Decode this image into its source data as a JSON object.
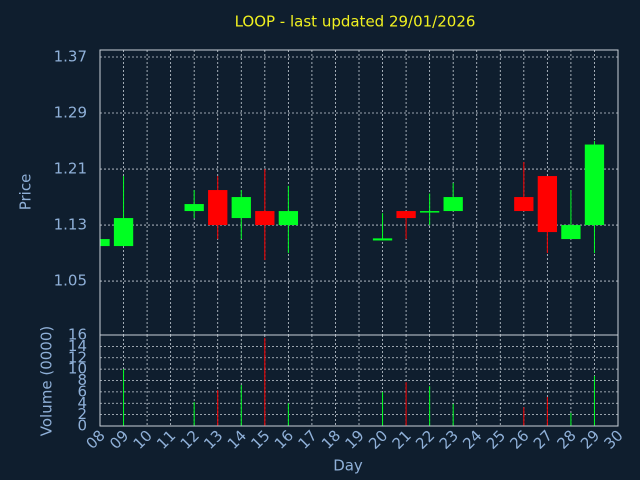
{
  "chart_data": {
    "type": "candlestick",
    "title": "LOOP - last updated 29/01/2026",
    "ylabel": "Price",
    "volume_label": "Volume (0000)",
    "xlabel": "Day",
    "x": [
      8,
      9,
      12,
      13,
      14,
      15,
      16,
      20,
      21,
      22,
      23,
      26,
      27,
      28,
      29
    ],
    "open": [
      1.1,
      1.1,
      1.15,
      1.18,
      1.14,
      1.15,
      1.13,
      1.108,
      1.15,
      1.148,
      1.15,
      1.17,
      1.2,
      1.11,
      1.13
    ],
    "high": [
      1.11,
      1.2,
      1.18,
      1.2,
      1.18,
      1.21,
      1.186,
      1.147,
      1.15,
      1.175,
      1.19,
      1.22,
      1.2,
      1.18,
      1.25
    ],
    "low": [
      1.1,
      1.1,
      1.14,
      1.11,
      1.11,
      1.08,
      1.09,
      1.108,
      1.11,
      1.13,
      1.15,
      1.15,
      1.09,
      1.11,
      1.09
    ],
    "close": [
      1.11,
      1.14,
      1.16,
      1.13,
      1.17,
      1.13,
      1.15,
      1.111,
      1.14,
      1.15,
      1.17,
      1.15,
      1.12,
      1.13,
      1.245
    ],
    "volume": [
      0,
      10,
      4.2,
      6.3,
      7.2,
      15.5,
      4,
      6,
      7.7,
      7,
      3.9,
      3.3,
      5.1,
      2.3,
      8.8
    ],
    "up_color": "#00ff22",
    "down_color": "#ff0000",
    "xlim": [
      8,
      30
    ],
    "xticks": [
      {
        "value": 8,
        "label": "08"
      },
      {
        "value": 9,
        "label": "09"
      },
      10,
      11,
      12,
      13,
      14,
      15,
      16,
      17,
      18,
      19,
      20,
      21,
      22,
      23,
      24,
      25,
      26,
      27,
      28,
      29,
      30
    ],
    "ylim": [
      0.973,
      1.38
    ],
    "yticks": [
      1.05,
      1.13,
      1.21,
      1.29,
      1.37
    ],
    "volume_ylim": [
      0,
      16
    ],
    "volume_yticks": [
      0,
      2,
      4,
      6,
      8,
      10,
      12,
      14,
      16
    ],
    "grid": true
  }
}
